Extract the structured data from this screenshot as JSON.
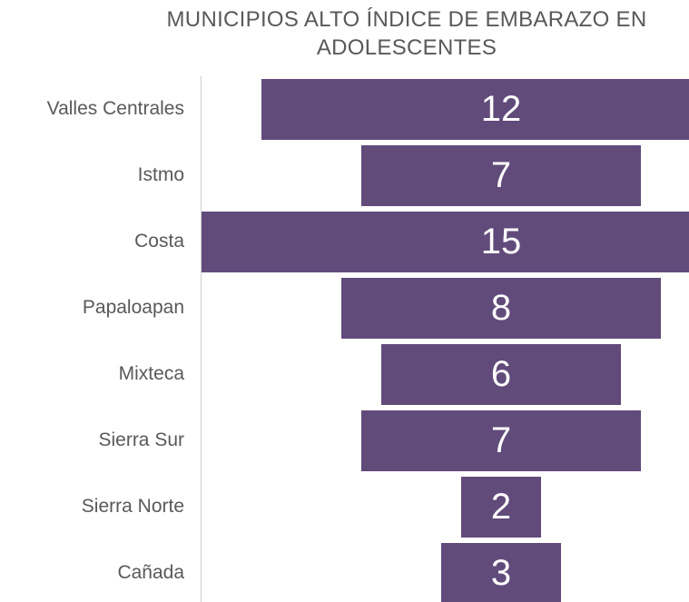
{
  "chart_data": {
    "type": "funnel",
    "title": "MUNICIPIOS ALTO ÍNDICE DE EMBARAZO EN ADOLESCENTES",
    "categories": [
      "Valles Centrales",
      "Istmo",
      "Costa",
      "Papaloapan",
      "Mixteca",
      "Sierra Sur",
      "Sierra Norte",
      "Cañada"
    ],
    "values": [
      12,
      7,
      15,
      8,
      6,
      7,
      2,
      3
    ],
    "color": "#614b7b"
  }
}
